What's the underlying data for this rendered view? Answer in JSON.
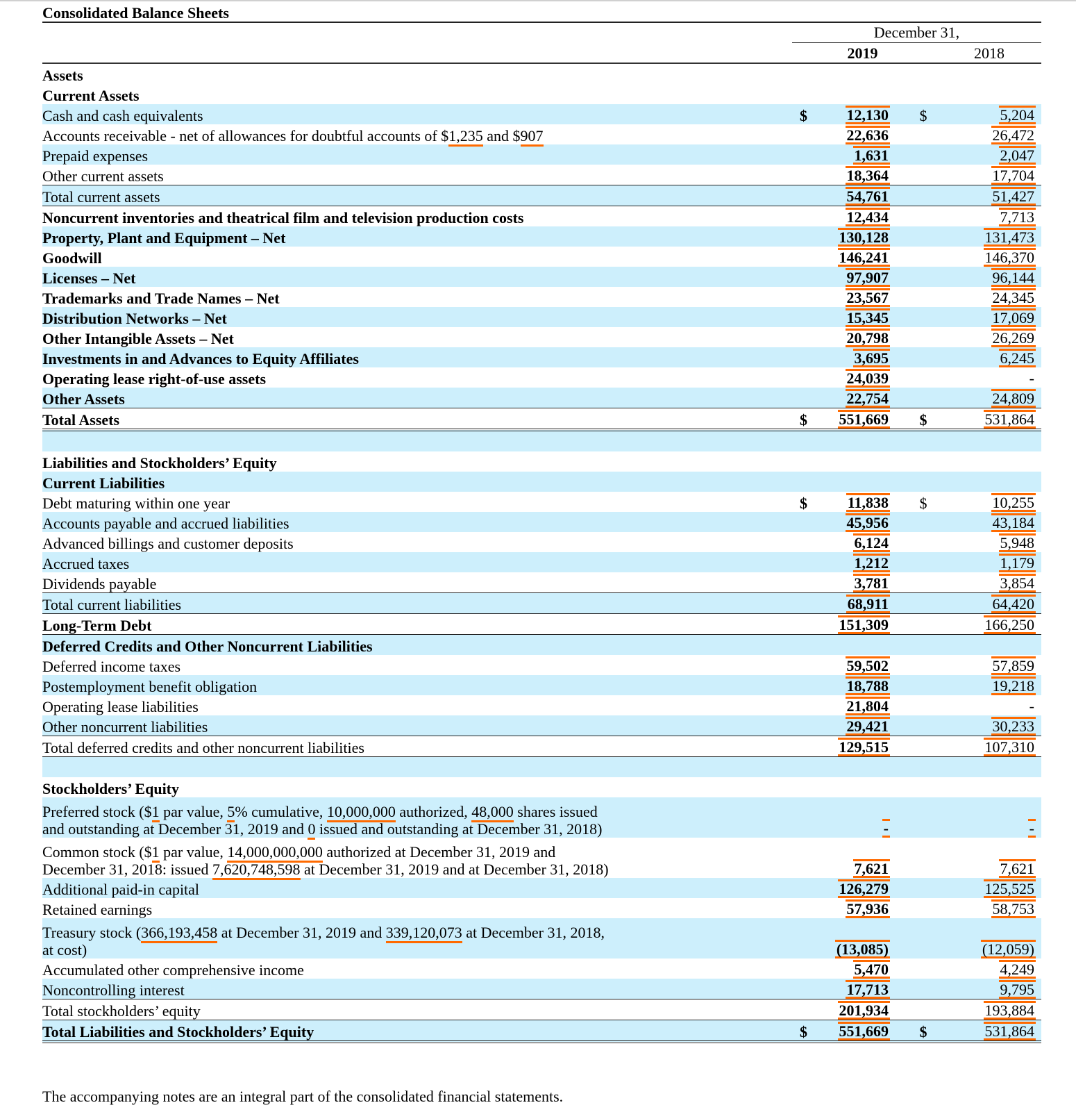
{
  "title": "Consolidated Balance Sheets",
  "header": {
    "period": "December 31,",
    "year_current": "2019",
    "year_prior": "2018"
  },
  "colors": {
    "highlight": "#ff6a00",
    "row_shade": "#cdeffc"
  },
  "rows": [
    {
      "label": "Assets",
      "bold": true
    },
    {
      "label": "Current Assets",
      "bold": true
    },
    {
      "label": "Cash and cash equivalents",
      "shade": true,
      "d1": "$",
      "v1": "12,130",
      "d2": "$",
      "v2": "5,204"
    },
    {
      "lines": [
        [
          {
            "t": "Accounts receivable - net of allowances for doubtful accounts of $"
          },
          {
            "t": "1,235",
            "hl": true
          },
          {
            "t": " and $"
          },
          {
            "t": "907",
            "hl": true
          }
        ]
      ],
      "v1": "22,636",
      "v2": "26,472"
    },
    {
      "label": "Prepaid expenses",
      "shade": true,
      "v1": "1,631",
      "v2": "2,047"
    },
    {
      "label": "Other current assets",
      "v1": "18,364",
      "v2": "17,704"
    },
    {
      "label": "Total current assets",
      "shade": true,
      "tl": true,
      "v1": "54,761",
      "v2": "51,427"
    },
    {
      "label": "Noncurrent inventories and theatrical film and television production costs",
      "bold": true,
      "tl": true,
      "v1": "12,434",
      "v2": "7,713"
    },
    {
      "label": "Property, Plant and Equipment – Net",
      "bold": true,
      "shade": true,
      "v1": "130,128",
      "v2": "131,473"
    },
    {
      "label": "Goodwill",
      "bold": true,
      "v1": "146,241",
      "v2": "146,370"
    },
    {
      "label": "Licenses – Net",
      "bold": true,
      "shade": true,
      "v1": "97,907",
      "v2": "96,144"
    },
    {
      "label": "Trademarks and Trade Names – Net",
      "bold": true,
      "v1": "23,567",
      "v2": "24,345"
    },
    {
      "label": "Distribution Networks – Net",
      "bold": true,
      "shade": true,
      "v1": "15,345",
      "v2": "17,069"
    },
    {
      "label": "Other Intangible Assets – Net",
      "bold": true,
      "v1": "20,798",
      "v2": "26,269"
    },
    {
      "label": "Investments in and Advances to Equity Affiliates",
      "bold": true,
      "shade": true,
      "v1": "3,695",
      "v2": "6,245"
    },
    {
      "label": "Operating lease right-of-use assets",
      "bold": true,
      "v1": "24,039",
      "v2": "-"
    },
    {
      "label": "Other Assets",
      "bold": true,
      "shade": true,
      "v1": "22,754",
      "v2": "24,809"
    },
    {
      "label": "Total Assets",
      "bold": true,
      "tl": true,
      "dbl": true,
      "d1": "$",
      "v1": "551,669",
      "d2": "$",
      "v2": "531,864"
    },
    {
      "label": "",
      "shade": true
    },
    {
      "label": "Liabilities and Stockholders’ Equity",
      "bold": true
    },
    {
      "label": "Current Liabilities",
      "bold": true,
      "shade": true
    },
    {
      "label": "Debt maturing within one year",
      "d1": "$",
      "v1": "11,838",
      "d2": "$",
      "v2": "10,255"
    },
    {
      "label": "Accounts payable and accrued liabilities",
      "shade": true,
      "v1": "45,956",
      "v2": "43,184"
    },
    {
      "label": "Advanced billings and customer deposits",
      "v1": "6,124",
      "v2": "5,948"
    },
    {
      "label": "Accrued taxes",
      "shade": true,
      "v1": "1,212",
      "v2": "1,179"
    },
    {
      "label": "Dividends payable",
      "v1": "3,781",
      "v2": "3,854"
    },
    {
      "label": "Total current liabilities",
      "shade": true,
      "tl": true,
      "v1": "68,911",
      "v2": "64,420"
    },
    {
      "label": "Long-Term Debt",
      "bold": true,
      "tl": true,
      "v1": "151,309",
      "v2": "166,250"
    },
    {
      "label": "Deferred Credits and Other Noncurrent Liabilities",
      "bold": true,
      "shade": true,
      "tl": true
    },
    {
      "label": "Deferred income taxes",
      "v1": "59,502",
      "v2": "57,859"
    },
    {
      "label": "Postemployment benefit obligation",
      "shade": true,
      "v1": "18,788",
      "v2": "19,218"
    },
    {
      "label": "Operating lease liabilities",
      "v1": "21,804",
      "v2": "-"
    },
    {
      "label": "Other noncurrent liabilities",
      "shade": true,
      "v1": "29,421",
      "v2": "30,233"
    },
    {
      "label": "Total deferred credits and other noncurrent liabilities",
      "tl": true,
      "bl": true,
      "v1": "129,515",
      "v2": "107,310"
    },
    {
      "label": "",
      "shade": true,
      "tl": true
    },
    {
      "label": "Stockholders’ Equity",
      "bold": true
    },
    {
      "two": true,
      "shade": true,
      "lines": [
        [
          {
            "t": "Preferred stock ($"
          },
          {
            "t": "1",
            "hl": true
          },
          {
            "t": " par value, "
          },
          {
            "t": "5",
            "hl": true
          },
          {
            "t": "% cumulative, "
          },
          {
            "t": "10,000,000",
            "hl": true
          },
          {
            "t": " authorized, "
          },
          {
            "t": "48,000",
            "hl": true
          },
          {
            "t": " shares issued"
          }
        ],
        [
          {
            "t": "and outstanding at December 31, 2019 and "
          },
          {
            "t": "0",
            "hl": true
          },
          {
            "t": " issued and outstanding at December 31, 2018)"
          }
        ]
      ],
      "v1": "-",
      "v2": "-"
    },
    {
      "two": true,
      "lines": [
        [
          {
            "t": "Common stock ($"
          },
          {
            "t": "1",
            "hl": true
          },
          {
            "t": " par value, "
          },
          {
            "t": "14,000,000,000",
            "hl": true
          },
          {
            "t": " authorized at December 31, 2019 and"
          }
        ],
        [
          {
            "t": "December 31, 2018: issued "
          },
          {
            "t": "7,620,748,598",
            "hl": true
          },
          {
            "t": " at December 31, 2019 and at December 31, 2018)"
          }
        ]
      ],
      "v1": "7,621",
      "v2": "7,621"
    },
    {
      "label": "Additional paid-in capital",
      "shade": true,
      "v1": "126,279",
      "v2": "125,525"
    },
    {
      "label": "Retained earnings",
      "v1": "57,936",
      "v2": "58,753"
    },
    {
      "two": true,
      "shade": true,
      "lines": [
        [
          {
            "t": "Treasury stock ("
          },
          {
            "t": "366,193,458",
            "hl": true
          },
          {
            "t": " at December 31, 2019 and "
          },
          {
            "t": "339,120,073",
            "hl": true
          },
          {
            "t": " at December 31, 2018,"
          }
        ],
        [
          {
            "t": "at cost)"
          }
        ]
      ],
      "v1": "(13,085)",
      "v2": "(12,059)"
    },
    {
      "label": "Accumulated other comprehensive income",
      "v1": "5,470",
      "v2": "4,249"
    },
    {
      "label": "Noncontrolling interest",
      "shade": true,
      "v1": "17,713",
      "v2": "9,795"
    },
    {
      "label": "Total stockholders’ equity",
      "tl": true,
      "v1": "201,934",
      "v2": "193,884"
    },
    {
      "label": "Total Liabilities and Stockholders’ Equity",
      "bold": true,
      "shade": true,
      "tl": true,
      "dbl": true,
      "d1": "$",
      "v1": "551,669",
      "d2": "$",
      "v2": "531,864"
    }
  ],
  "note": "The accompanying notes are an integral part of the consolidated financial statements."
}
